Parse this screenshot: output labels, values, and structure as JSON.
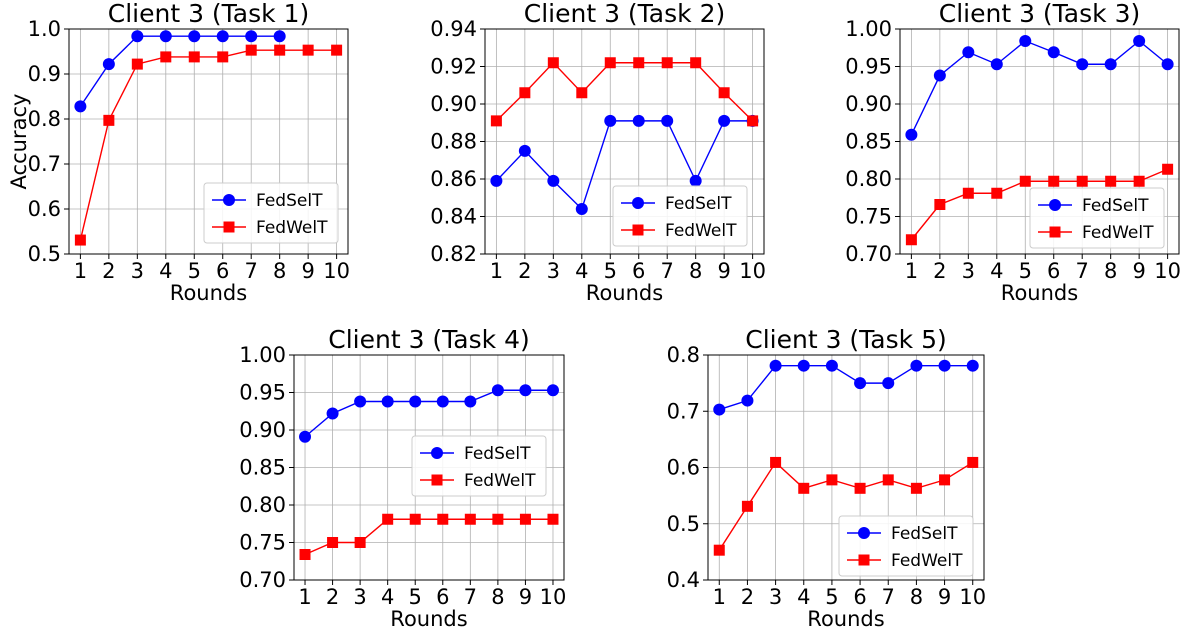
{
  "figure": {
    "x_label": "Rounds",
    "y_label": "Accuracy",
    "legend": [
      "FedSelT",
      "FedWelT"
    ]
  },
  "series_colors": {
    "FedSelT": "#0000ff",
    "FedWelT": "#ff0000"
  },
  "chart_data": [
    {
      "type": "line",
      "title": "Client 3 (Task 1)",
      "xlabel": "Rounds",
      "ylabel": "Accuracy",
      "x": [
        1,
        2,
        3,
        4,
        5,
        6,
        7,
        8,
        9,
        10
      ],
      "xlim": [
        0.6,
        10.4
      ],
      "ylim": [
        0.5,
        1.0
      ],
      "yticks": [
        "0.5",
        "0.6",
        "0.7",
        "0.8",
        "0.9",
        "1.0"
      ],
      "grid": true,
      "legend_position": "lower-right",
      "series": [
        {
          "name": "FedSelT",
          "color": "#0000ff",
          "marker": "circle",
          "values": [
            0.828,
            0.922,
            0.984,
            0.984,
            0.984,
            0.984,
            0.984,
            0.984,
            null,
            null
          ]
        },
        {
          "name": "FedWelT",
          "color": "#ff0000",
          "marker": "square",
          "values": [
            0.531,
            0.797,
            0.922,
            0.938,
            0.938,
            0.938,
            0.953,
            0.953,
            0.953,
            0.953
          ]
        }
      ]
    },
    {
      "type": "line",
      "title": "Client 3 (Task 2)",
      "xlabel": "Rounds",
      "ylabel": "",
      "x": [
        1,
        2,
        3,
        4,
        5,
        6,
        7,
        8,
        9,
        10
      ],
      "xlim": [
        0.6,
        10.4
      ],
      "ylim": [
        0.82,
        0.94
      ],
      "yticks": [
        "0.82",
        "0.84",
        "0.86",
        "0.88",
        "0.90",
        "0.92",
        "0.94"
      ],
      "grid": true,
      "legend_position": "lower-right",
      "series": [
        {
          "name": "FedSelT",
          "color": "#0000ff",
          "marker": "circle",
          "values": [
            0.859,
            0.875,
            0.859,
            0.844,
            0.891,
            0.891,
            0.891,
            0.859,
            0.891,
            0.891
          ]
        },
        {
          "name": "FedWelT",
          "color": "#ff0000",
          "marker": "square",
          "values": [
            0.891,
            0.906,
            0.922,
            0.906,
            0.922,
            0.922,
            0.922,
            0.922,
            0.906,
            0.891
          ]
        }
      ]
    },
    {
      "type": "line",
      "title": "Client 3 (Task 3)",
      "xlabel": "Rounds",
      "ylabel": "",
      "x": [
        1,
        2,
        3,
        4,
        5,
        6,
        7,
        8,
        9,
        10
      ],
      "xlim": [
        0.6,
        10.4
      ],
      "ylim": [
        0.7,
        1.0
      ],
      "yticks": [
        "0.70",
        "0.75",
        "0.80",
        "0.85",
        "0.90",
        "0.95",
        "1.00"
      ],
      "grid": true,
      "legend_position": "lower-right",
      "series": [
        {
          "name": "FedSelT",
          "color": "#0000ff",
          "marker": "circle",
          "values": [
            0.859,
            0.938,
            0.969,
            0.953,
            0.984,
            0.969,
            0.953,
            0.953,
            0.984,
            0.953
          ]
        },
        {
          "name": "FedWelT",
          "color": "#ff0000",
          "marker": "square",
          "values": [
            0.719,
            0.766,
            0.781,
            0.781,
            0.797,
            0.797,
            0.797,
            0.797,
            0.797,
            0.813
          ]
        }
      ]
    },
    {
      "type": "line",
      "title": "Client 3 (Task 4)",
      "xlabel": "Rounds",
      "ylabel": "",
      "x": [
        1,
        2,
        3,
        4,
        5,
        6,
        7,
        8,
        9,
        10
      ],
      "xlim": [
        0.6,
        10.4
      ],
      "ylim": [
        0.7,
        1.0
      ],
      "yticks": [
        "0.70",
        "0.75",
        "0.80",
        "0.85",
        "0.90",
        "0.95",
        "1.00"
      ],
      "grid": true,
      "legend_position": "center-right",
      "series": [
        {
          "name": "FedSelT",
          "color": "#0000ff",
          "marker": "circle",
          "values": [
            0.891,
            0.922,
            0.938,
            0.938,
            0.938,
            0.938,
            0.938,
            0.953,
            0.953,
            0.953
          ]
        },
        {
          "name": "FedWelT",
          "color": "#ff0000",
          "marker": "square",
          "values": [
            0.734,
            0.75,
            0.75,
            0.781,
            0.781,
            0.781,
            0.781,
            0.781,
            0.781,
            0.781
          ]
        }
      ]
    },
    {
      "type": "line",
      "title": "Client 3 (Task 5)",
      "xlabel": "Rounds",
      "ylabel": "",
      "x": [
        1,
        2,
        3,
        4,
        5,
        6,
        7,
        8,
        9,
        10
      ],
      "xlim": [
        0.6,
        10.4
      ],
      "ylim": [
        0.4,
        0.8
      ],
      "yticks": [
        "0.4",
        "0.5",
        "0.6",
        "0.7",
        "0.8"
      ],
      "grid": true,
      "legend_position": "lower-right",
      "series": [
        {
          "name": "FedSelT",
          "color": "#0000ff",
          "marker": "circle",
          "values": [
            0.703,
            0.719,
            0.781,
            0.781,
            0.781,
            0.75,
            0.75,
            0.781,
            0.781,
            0.781
          ]
        },
        {
          "name": "FedWelT",
          "color": "#ff0000",
          "marker": "square",
          "values": [
            0.453,
            0.531,
            0.609,
            0.563,
            0.578,
            0.563,
            0.578,
            0.563,
            0.578,
            0.609
          ]
        }
      ]
    }
  ]
}
